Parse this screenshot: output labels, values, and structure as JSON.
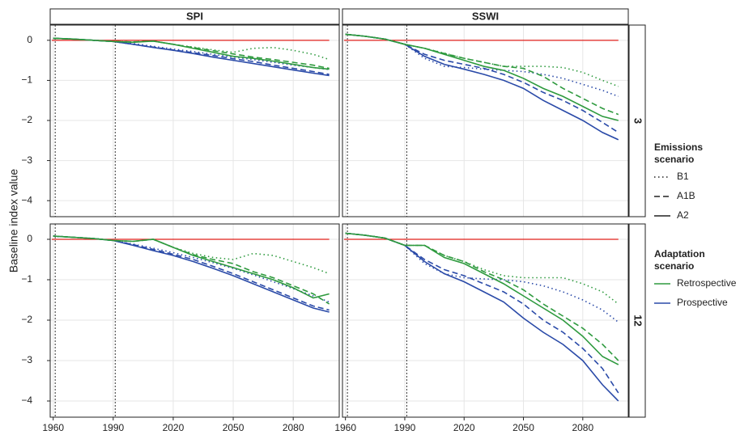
{
  "y_label": "Baseline index value",
  "columns": [
    "SPI",
    "SSWI"
  ],
  "rows": [
    "3",
    "12"
  ],
  "legends": [
    {
      "title_lines": [
        "Emissions",
        "scenario"
      ],
      "items": [
        {
          "label": "B1",
          "dash": "dotted"
        },
        {
          "label": "A1B",
          "dash": "dashed"
        },
        {
          "label": "A2",
          "dash": "solid"
        }
      ]
    },
    {
      "title_lines": [
        "Adaptation",
        "scenario"
      ],
      "items": [
        {
          "label": "Retrospective",
          "color": "#2e9a3e"
        },
        {
          "label": "Prospective",
          "color": "#2a4aa8"
        }
      ]
    }
  ],
  "chart_data": [
    {
      "type": "line",
      "x": [
        1960,
        1970,
        1980,
        1990,
        2000,
        2010,
        2020,
        2030,
        2040,
        2050,
        2060,
        2070,
        2080,
        2090,
        2098
      ],
      "xlim": [
        1958.5,
        2103
      ],
      "xticks": [
        1960,
        1990,
        2020,
        2050,
        2080
      ],
      "ylim": [
        -4.4,
        0.38
      ],
      "yticks": [
        {
          "value": 0,
          "label": "0"
        },
        {
          "value": -1,
          "label": "−1"
        },
        {
          "value": -2,
          "label": "−2"
        },
        {
          "value": -3,
          "label": "−3"
        },
        {
          "value": -4,
          "label": "−4"
        }
      ],
      "grid": true,
      "hline": {
        "value": 0,
        "color": "#e0201b"
      },
      "vlines": [
        1961,
        1991
      ],
      "series": [
        {
          "color": "#2a4aa8",
          "dash": "dotted",
          "values": [
            0.05,
            0.03,
            0.0,
            -0.03,
            -0.08,
            -0.15,
            -0.22,
            -0.28,
            -0.35,
            -0.42,
            -0.48,
            -0.55,
            -0.62,
            -0.68,
            -0.73
          ]
        },
        {
          "color": "#2a4aa8",
          "dash": "dashed",
          "values": [
            0.05,
            0.03,
            0.0,
            -0.03,
            -0.1,
            -0.17,
            -0.24,
            -0.31,
            -0.38,
            -0.46,
            -0.53,
            -0.62,
            -0.7,
            -0.78,
            -0.85
          ]
        },
        {
          "color": "#2a4aa8",
          "dash": "solid",
          "values": [
            0.05,
            0.03,
            0.0,
            -0.03,
            -0.1,
            -0.18,
            -0.25,
            -0.33,
            -0.42,
            -0.5,
            -0.58,
            -0.66,
            -0.74,
            -0.82,
            -0.88
          ]
        },
        {
          "color": "#2e9a3e",
          "dash": "dotted",
          "values": [
            0.05,
            0.03,
            0.0,
            -0.03,
            -0.04,
            -0.02,
            -0.1,
            -0.17,
            -0.24,
            -0.3,
            -0.2,
            -0.18,
            -0.25,
            -0.35,
            -0.48
          ]
        },
        {
          "color": "#2e9a3e",
          "dash": "dashed",
          "values": [
            0.05,
            0.03,
            0.0,
            -0.03,
            -0.04,
            -0.02,
            -0.1,
            -0.18,
            -0.26,
            -0.34,
            -0.42,
            -0.48,
            -0.55,
            -0.62,
            -0.7
          ]
        },
        {
          "color": "#2e9a3e",
          "dash": "solid",
          "values": [
            0.05,
            0.03,
            0.0,
            -0.03,
            -0.05,
            -0.02,
            -0.1,
            -0.2,
            -0.3,
            -0.4,
            -0.45,
            -0.52,
            -0.6,
            -0.68,
            -0.72
          ]
        }
      ]
    },
    {
      "type": "line",
      "x": [
        1960,
        1970,
        1980,
        1990,
        2000,
        2010,
        2020,
        2030,
        2040,
        2050,
        2060,
        2070,
        2080,
        2090,
        2098
      ],
      "xlim": [
        1958.5,
        2103
      ],
      "xticks": [
        1960,
        1990,
        2020,
        2050,
        2080
      ],
      "ylim": [
        -4.4,
        0.38
      ],
      "yticks": [
        {
          "value": 0,
          "label": "0"
        },
        {
          "value": -1,
          "label": "−1"
        },
        {
          "value": -2,
          "label": "−2"
        },
        {
          "value": -3,
          "label": "−3"
        },
        {
          "value": -4,
          "label": "−4"
        }
      ],
      "grid": true,
      "hline": {
        "value": 0,
        "color": "#e0201b"
      },
      "vlines": [
        1961,
        1991
      ],
      "series": [
        {
          "color": "#2a4aa8",
          "dash": "dotted",
          "values": [
            0.15,
            0.1,
            0.03,
            -0.1,
            -0.45,
            -0.65,
            -0.68,
            -0.72,
            -0.75,
            -0.78,
            -0.85,
            -0.95,
            -1.1,
            -1.25,
            -1.4
          ]
        },
        {
          "color": "#2a4aa8",
          "dash": "dashed",
          "values": [
            0.15,
            0.1,
            0.03,
            -0.1,
            -0.35,
            -0.5,
            -0.6,
            -0.7,
            -0.85,
            -1.05,
            -1.3,
            -1.5,
            -1.75,
            -2.05,
            -2.3
          ]
        },
        {
          "color": "#2a4aa8",
          "dash": "solid",
          "values": [
            0.15,
            0.1,
            0.03,
            -0.1,
            -0.4,
            -0.6,
            -0.72,
            -0.85,
            -1.0,
            -1.2,
            -1.5,
            -1.75,
            -2.0,
            -2.3,
            -2.48
          ]
        },
        {
          "color": "#2e9a3e",
          "dash": "dotted",
          "values": [
            0.15,
            0.1,
            0.03,
            -0.1,
            -0.2,
            -0.32,
            -0.45,
            -0.55,
            -0.65,
            -0.65,
            -0.65,
            -0.68,
            -0.8,
            -1.0,
            -1.15
          ]
        },
        {
          "color": "#2e9a3e",
          "dash": "dashed",
          "values": [
            0.15,
            0.1,
            0.03,
            -0.1,
            -0.2,
            -0.33,
            -0.45,
            -0.55,
            -0.65,
            -0.7,
            -0.9,
            -1.2,
            -1.45,
            -1.7,
            -1.85
          ]
        },
        {
          "color": "#2e9a3e",
          "dash": "solid",
          "values": [
            0.15,
            0.1,
            0.03,
            -0.1,
            -0.2,
            -0.35,
            -0.5,
            -0.65,
            -0.75,
            -0.95,
            -1.2,
            -1.4,
            -1.65,
            -1.9,
            -2.0
          ]
        }
      ]
    },
    {
      "type": "line",
      "x": [
        1960,
        1970,
        1980,
        1990,
        2000,
        2010,
        2020,
        2030,
        2040,
        2050,
        2060,
        2070,
        2080,
        2090,
        2098
      ],
      "xlim": [
        1958.5,
        2103
      ],
      "xticks": [
        1960,
        1990,
        2020,
        2050,
        2080
      ],
      "ylim": [
        -4.4,
        0.38
      ],
      "yticks": [
        {
          "value": 0,
          "label": "0"
        },
        {
          "value": -1,
          "label": "−1"
        },
        {
          "value": -2,
          "label": "−2"
        },
        {
          "value": -3,
          "label": "−3"
        },
        {
          "value": -4,
          "label": "−4"
        }
      ],
      "grid": true,
      "hline": {
        "value": 0,
        "color": "#e0201b"
      },
      "vlines": [
        1961,
        1991
      ],
      "series": [
        {
          "color": "#2a4aa8",
          "dash": "dotted",
          "values": [
            0.08,
            0.05,
            0.02,
            -0.03,
            -0.12,
            -0.22,
            -0.33,
            -0.45,
            -0.58,
            -0.72,
            -0.88,
            -1.05,
            -1.22,
            -1.4,
            -1.55
          ]
        },
        {
          "color": "#2a4aa8",
          "dash": "dashed",
          "values": [
            0.08,
            0.05,
            0.02,
            -0.03,
            -0.13,
            -0.25,
            -0.37,
            -0.5,
            -0.67,
            -0.85,
            -1.05,
            -1.25,
            -1.45,
            -1.65,
            -1.75
          ]
        },
        {
          "color": "#2a4aa8",
          "dash": "solid",
          "values": [
            0.08,
            0.05,
            0.02,
            -0.03,
            -0.15,
            -0.28,
            -0.4,
            -0.55,
            -0.72,
            -0.9,
            -1.1,
            -1.3,
            -1.5,
            -1.7,
            -1.8
          ]
        },
        {
          "color": "#2e9a3e",
          "dash": "dotted",
          "values": [
            0.08,
            0.05,
            0.02,
            -0.03,
            -0.05,
            0.0,
            -0.2,
            -0.35,
            -0.45,
            -0.5,
            -0.35,
            -0.4,
            -0.55,
            -0.7,
            -0.85
          ]
        },
        {
          "color": "#2e9a3e",
          "dash": "dashed",
          "values": [
            0.08,
            0.05,
            0.02,
            -0.03,
            -0.05,
            0.0,
            -0.2,
            -0.38,
            -0.5,
            -0.6,
            -0.8,
            -0.95,
            -1.15,
            -1.35,
            -1.6
          ]
        },
        {
          "color": "#2e9a3e",
          "dash": "solid",
          "values": [
            0.08,
            0.05,
            0.02,
            -0.03,
            -0.05,
            0.0,
            -0.2,
            -0.4,
            -0.55,
            -0.7,
            -0.85,
            -1.0,
            -1.2,
            -1.45,
            -1.35
          ]
        }
      ]
    },
    {
      "type": "line",
      "x": [
        1960,
        1970,
        1980,
        1990,
        2000,
        2010,
        2020,
        2030,
        2040,
        2050,
        2060,
        2070,
        2080,
        2090,
        2098
      ],
      "xlim": [
        1958.5,
        2103
      ],
      "xticks": [
        1960,
        1990,
        2020,
        2050,
        2080
      ],
      "ylim": [
        -4.4,
        0.38
      ],
      "yticks": [
        {
          "value": 0,
          "label": "0"
        },
        {
          "value": -1,
          "label": "−1"
        },
        {
          "value": -2,
          "label": "−2"
        },
        {
          "value": -3,
          "label": "−3"
        },
        {
          "value": -4,
          "label": "−4"
        }
      ],
      "grid": true,
      "hline": {
        "value": 0,
        "color": "#e0201b"
      },
      "vlines": [
        1961,
        1991
      ],
      "series": [
        {
          "color": "#2a4aa8",
          "dash": "dotted",
          "values": [
            0.15,
            0.1,
            0.03,
            -0.15,
            -0.6,
            -0.85,
            -0.95,
            -0.98,
            -1.0,
            -1.05,
            -1.15,
            -1.3,
            -1.5,
            -1.75,
            -2.05
          ]
        },
        {
          "color": "#2a4aa8",
          "dash": "dashed",
          "values": [
            0.15,
            0.1,
            0.03,
            -0.15,
            -0.5,
            -0.75,
            -0.9,
            -1.1,
            -1.3,
            -1.6,
            -2.0,
            -2.3,
            -2.7,
            -3.2,
            -3.8
          ]
        },
        {
          "color": "#2a4aa8",
          "dash": "solid",
          "values": [
            0.15,
            0.1,
            0.03,
            -0.15,
            -0.55,
            -0.85,
            -1.05,
            -1.3,
            -1.55,
            -1.95,
            -2.3,
            -2.6,
            -3.0,
            -3.6,
            -4.0
          ]
        },
        {
          "color": "#2e9a3e",
          "dash": "dotted",
          "values": [
            0.15,
            0.1,
            0.03,
            -0.15,
            -0.15,
            -0.4,
            -0.55,
            -0.75,
            -0.9,
            -0.95,
            -0.95,
            -0.95,
            -1.1,
            -1.3,
            -1.6
          ]
        },
        {
          "color": "#2e9a3e",
          "dash": "dashed",
          "values": [
            0.15,
            0.1,
            0.03,
            -0.15,
            -0.15,
            -0.4,
            -0.55,
            -0.8,
            -1.0,
            -1.25,
            -1.6,
            -1.9,
            -2.2,
            -2.6,
            -3.0
          ]
        },
        {
          "color": "#2e9a3e",
          "dash": "solid",
          "values": [
            0.15,
            0.1,
            0.03,
            -0.15,
            -0.15,
            -0.45,
            -0.6,
            -0.85,
            -1.1,
            -1.4,
            -1.7,
            -2.0,
            -2.4,
            -2.9,
            -3.1
          ]
        }
      ]
    }
  ]
}
